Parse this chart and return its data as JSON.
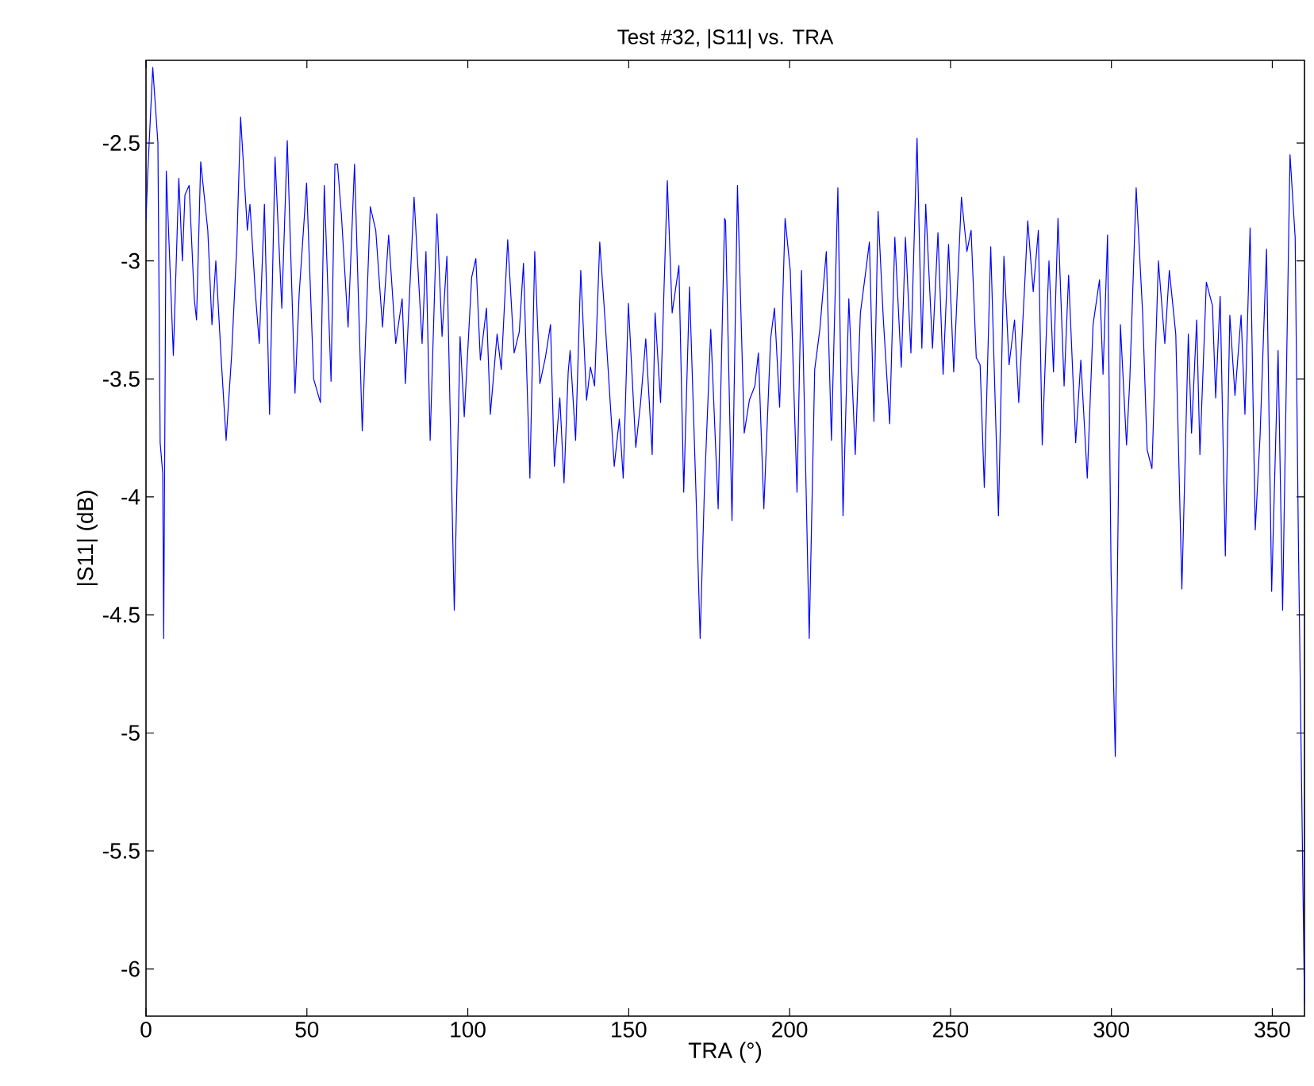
{
  "chart_data": {
    "type": "line",
    "title": "Test #32, |S11| vs. TRA",
    "xlabel": "TRA (°)",
    "ylabel": "|S11| (dB)",
    "x": [
      0,
      0.5,
      2.1,
      2.9,
      3.7,
      4.4,
      5.2,
      5.5,
      6.3,
      8.5,
      10.2,
      11.3,
      12.1,
      13.4,
      15,
      15.7,
      17,
      19.2,
      20.5,
      21.7,
      23.3,
      24.9,
      26.6,
      28.2,
      29.4,
      31.5,
      32.3,
      34,
      35.2,
      36.8,
      38.4,
      40.1,
      42.2,
      43.9,
      46.3,
      47.6,
      49.9,
      52.1,
      54.2,
      55.4,
      57.5,
      58.7,
      59.5,
      60.7,
      62.8,
      64.8,
      67.2,
      69.7,
      71.4,
      73.5,
      75.4,
      77.6,
      79.6,
      80.6,
      83.3,
      85.8,
      87,
      88.3,
      90.4,
      92,
      93.5,
      95.8,
      97.6,
      98.9,
      101.2,
      102.5,
      103.9,
      105.8,
      107,
      109.1,
      110.4,
      112.4,
      114.4,
      116,
      117.3,
      119.3,
      120.8,
      122.4,
      124.1,
      125.7,
      126.9,
      128.6,
      129.9,
      131.2,
      131.8,
      133.5,
      135.1,
      136.9,
      138.1,
      139.4,
      141,
      142.6,
      145.5,
      147.1,
      148.3,
      149.9,
      152.2,
      153.7,
      155.3,
      157.3,
      158.2,
      159.9,
      162,
      163.5,
      165.6,
      167.1,
      168.9,
      170.9,
      172.2,
      173.5,
      175.5,
      177.8,
      179.8,
      180.1,
      182.1,
      183.8,
      185.9,
      187.5,
      189.2,
      190.3,
      192,
      194.1,
      195.3,
      196.9,
      198.6,
      200.2,
      202.3,
      203.7,
      206.1,
      207.8,
      209.4,
      211.4,
      213,
      215,
      216.6,
      218.4,
      220.4,
      222,
      223.7,
      224.8,
      226.2,
      227.5,
      229.1,
      231.1,
      232.7,
      234.7,
      236,
      237.7,
      239.6,
      241.1,
      242.3,
      244.4,
      246.1,
      247.7,
      249.4,
      251,
      253.4,
      255.1,
      256.4,
      258,
      259.2,
      260.5,
      262.5,
      264.9,
      266.6,
      268.2,
      269.9,
      271.2,
      273.2,
      274,
      275.7,
      277.3,
      278.5,
      280.6,
      282,
      283.4,
      285.3,
      286.7,
      288.9,
      290.5,
      292.5,
      294.3,
      296.3,
      297.4,
      298.8,
      299.9,
      301.2,
      302.8,
      304.7,
      305.7,
      307.7,
      309.7,
      311.1,
      312.6,
      314.6,
      316.6,
      318,
      320,
      321.9,
      323.9,
      324.9,
      326.5,
      327.5,
      329.5,
      331.4,
      332.4,
      333.8,
      335.4,
      336.8,
      338.4,
      340.3,
      341.5,
      343.1,
      344.7,
      346.2,
      348.2,
      349.8,
      351.8,
      353.2,
      355.5,
      357.1,
      358.1,
      360
    ],
    "series": [
      {
        "color": "#0000ff",
        "values": [
          -2.83,
          -2.64,
          -2.18,
          -2.34,
          -2.5,
          -3.77,
          -3.9,
          -4.6,
          -2.62,
          -3.4,
          -2.65,
          -3.0,
          -2.72,
          -2.68,
          -3.16,
          -3.25,
          -2.58,
          -2.87,
          -3.27,
          -3.0,
          -3.4,
          -3.76,
          -3.4,
          -2.94,
          -2.39,
          -2.87,
          -2.76,
          -3.14,
          -3.35,
          -2.76,
          -3.65,
          -2.56,
          -3.2,
          -2.49,
          -3.56,
          -3.14,
          -2.67,
          -3.5,
          -3.6,
          -2.68,
          -3.51,
          -2.59,
          -2.59,
          -2.8,
          -3.28,
          -2.59,
          -3.72,
          -2.77,
          -2.87,
          -3.28,
          -2.89,
          -3.35,
          -3.16,
          -3.52,
          -2.73,
          -3.35,
          -2.96,
          -3.76,
          -2.8,
          -3.32,
          -2.98,
          -4.48,
          -3.32,
          -3.66,
          -3.07,
          -2.99,
          -3.42,
          -3.2,
          -3.65,
          -3.31,
          -3.46,
          -2.91,
          -3.39,
          -3.3,
          -3.01,
          -3.92,
          -2.96,
          -3.52,
          -3.41,
          -3.27,
          -3.87,
          -3.58,
          -3.94,
          -3.47,
          -3.38,
          -3.76,
          -3.04,
          -3.59,
          -3.45,
          -3.53,
          -2.92,
          -3.24,
          -3.87,
          -3.67,
          -3.92,
          -3.18,
          -3.79,
          -3.6,
          -3.33,
          -3.82,
          -3.22,
          -3.6,
          -2.66,
          -3.22,
          -3.02,
          -3.98,
          -3.11,
          -3.98,
          -4.6,
          -3.98,
          -3.29,
          -4.05,
          -2.82,
          -2.83,
          -4.1,
          -2.68,
          -3.73,
          -3.59,
          -3.53,
          -3.39,
          -4.05,
          -3.33,
          -3.2,
          -3.62,
          -2.82,
          -3.04,
          -3.98,
          -3.04,
          -4.6,
          -3.46,
          -3.29,
          -2.96,
          -3.76,
          -2.69,
          -4.08,
          -3.16,
          -3.82,
          -3.22,
          -3.04,
          -2.92,
          -3.68,
          -2.79,
          -3.24,
          -3.69,
          -2.9,
          -3.45,
          -2.9,
          -3.39,
          -2.48,
          -3.37,
          -2.76,
          -3.37,
          -2.88,
          -3.48,
          -2.93,
          -3.47,
          -2.73,
          -2.96,
          -2.87,
          -3.41,
          -3.44,
          -3.96,
          -2.94,
          -4.08,
          -2.98,
          -3.44,
          -3.25,
          -3.6,
          -3.06,
          -2.83,
          -3.13,
          -2.87,
          -3.78,
          -3.0,
          -3.47,
          -2.82,
          -3.53,
          -3.06,
          -3.77,
          -3.42,
          -3.92,
          -3.27,
          -3.08,
          -3.48,
          -2.89,
          -4.32,
          -5.1,
          -3.27,
          -3.78,
          -3.51,
          -2.69,
          -3.22,
          -3.8,
          -3.88,
          -3.0,
          -3.35,
          -3.04,
          -3.31,
          -4.39,
          -3.31,
          -3.73,
          -3.25,
          -3.82,
          -3.09,
          -3.19,
          -3.58,
          -3.15,
          -4.25,
          -3.23,
          -3.57,
          -3.23,
          -3.65,
          -2.86,
          -4.14,
          -3.74,
          -2.95,
          -4.4,
          -3.38,
          -4.48,
          -2.55,
          -2.9,
          -4.18,
          -6.15
        ]
      }
    ],
    "xlim": [
      0,
      360
    ],
    "ylim": [
      -6.2,
      -2.15
    ],
    "xticks": [
      0,
      50,
      100,
      150,
      200,
      250,
      300,
      350
    ],
    "yticks": [
      -6,
      -5.5,
      -5,
      -4.5,
      -4,
      -3.5,
      -3,
      -2.5
    ]
  }
}
